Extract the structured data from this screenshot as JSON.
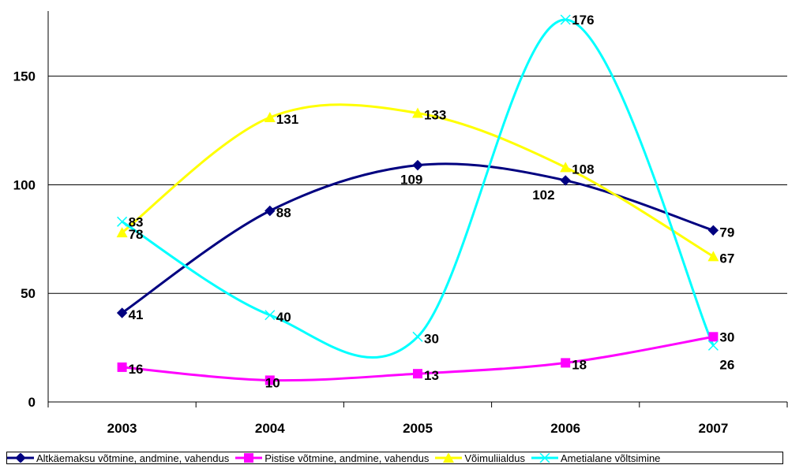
{
  "chart_data": {
    "type": "line",
    "categories": [
      "2003",
      "2004",
      "2005",
      "2006",
      "2007"
    ],
    "ylim": [
      0,
      180
    ],
    "yticks": [
      0,
      50,
      100,
      150
    ],
    "grid": true,
    "legend_position": "bottom",
    "series": [
      {
        "name": "Altkäemaksu võtmine, andmine, vahendus",
        "color": "#000080",
        "marker": "diamond",
        "values": [
          41,
          88,
          109,
          102,
          79
        ]
      },
      {
        "name": "Pistise võtmine, andmine, vahendus",
        "color": "#FF00FF",
        "marker": "square",
        "values": [
          16,
          10,
          13,
          18,
          30
        ]
      },
      {
        "name": "Võimuliialdus",
        "color": "#FFFF00",
        "marker": "triangle",
        "values": [
          78,
          131,
          133,
          108,
          67
        ]
      },
      {
        "name": "Ametialane võltsimine",
        "color": "#00FFFF",
        "marker": "x",
        "values": [
          83,
          40,
          30,
          176,
          26
        ]
      }
    ]
  }
}
